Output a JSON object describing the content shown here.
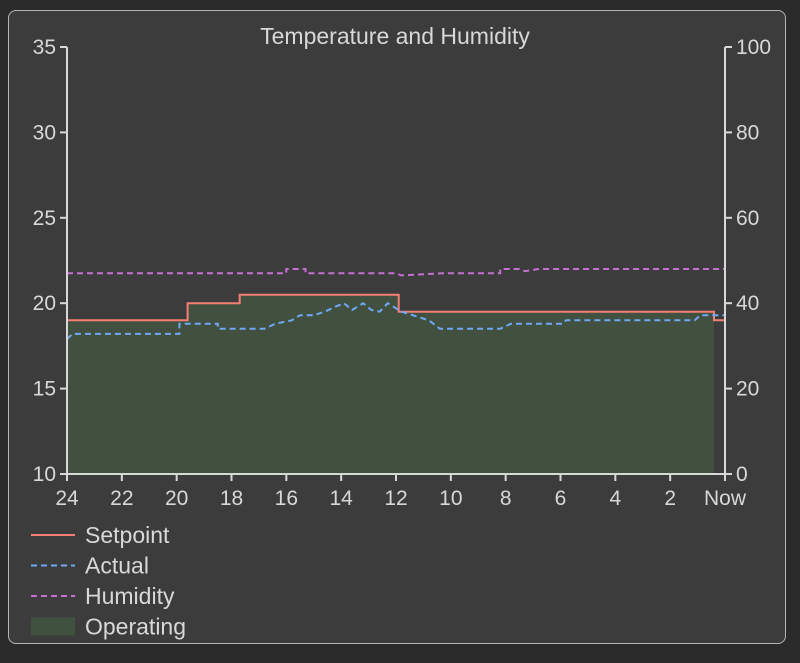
{
  "chart_data": {
    "type": "line",
    "title": "Temperature and Humidity",
    "x": {
      "range": [
        24,
        0
      ],
      "ticks": [
        24,
        22,
        20,
        18,
        16,
        14,
        12,
        10,
        8,
        6,
        4,
        2,
        0
      ],
      "tick_labels": [
        "24",
        "22",
        "20",
        "18",
        "16",
        "14",
        "12",
        "10",
        "8",
        "6",
        "4",
        "2",
        "Now"
      ]
    },
    "y_left": {
      "range": [
        10,
        35
      ],
      "ticks": [
        10,
        15,
        20,
        25,
        30,
        35
      ],
      "tick_labels": [
        "10",
        "15",
        "20",
        "25",
        "30",
        "35"
      ]
    },
    "y_right": {
      "range": [
        0,
        100
      ],
      "ticks": [
        0,
        20,
        40,
        60,
        80,
        100
      ],
      "tick_labels": [
        "0",
        "20",
        "40",
        "60",
        "80",
        "100"
      ]
    },
    "grid": false,
    "legend": {
      "placement": "bottom-left"
    },
    "series": [
      {
        "name": "Setpoint",
        "axis": "left",
        "style": "solid",
        "color": "#f47f75",
        "points": [
          [
            24,
            19.0
          ],
          [
            19.6,
            19.0
          ],
          [
            19.6,
            20.0
          ],
          [
            17.7,
            20.0
          ],
          [
            17.7,
            20.5
          ],
          [
            11.9,
            20.5
          ],
          [
            11.9,
            19.5
          ],
          [
            0.4,
            19.5
          ],
          [
            0.4,
            19.0
          ],
          [
            0,
            19.0
          ]
        ]
      },
      {
        "name": "Actual",
        "axis": "left",
        "style": "dashed",
        "color": "#6fa8f5",
        "points": [
          [
            24,
            17.9
          ],
          [
            23.8,
            18.2
          ],
          [
            19.9,
            18.2
          ],
          [
            19.9,
            18.8
          ],
          [
            18.5,
            18.8
          ],
          [
            18.5,
            18.5
          ],
          [
            16.8,
            18.5
          ],
          [
            16.4,
            18.8
          ],
          [
            15.8,
            19.0
          ],
          [
            15.5,
            19.3
          ],
          [
            15.0,
            19.3
          ],
          [
            14.6,
            19.5
          ],
          [
            14.2,
            19.8
          ],
          [
            13.9,
            20.0
          ],
          [
            13.6,
            19.6
          ],
          [
            13.2,
            20.0
          ],
          [
            12.9,
            19.6
          ],
          [
            12.6,
            19.5
          ],
          [
            12.3,
            20.0
          ],
          [
            11.8,
            19.5
          ],
          [
            10.8,
            19.0
          ],
          [
            10.4,
            18.5
          ],
          [
            8.2,
            18.5
          ],
          [
            7.8,
            18.8
          ],
          [
            5.9,
            18.8
          ],
          [
            5.8,
            19.0
          ],
          [
            1.1,
            19.0
          ],
          [
            0.9,
            19.3
          ],
          [
            0,
            19.3
          ]
        ]
      },
      {
        "name": "Humidity",
        "axis": "right",
        "style": "dashed",
        "color": "#c46fd1",
        "points": [
          [
            24,
            47
          ],
          [
            16.0,
            47
          ],
          [
            16.0,
            48
          ],
          [
            15.3,
            48
          ],
          [
            15.3,
            47
          ],
          [
            12.0,
            47
          ],
          [
            11.8,
            46.5
          ],
          [
            10.3,
            47
          ],
          [
            8.2,
            47
          ],
          [
            8.2,
            48
          ],
          [
            7.5,
            48
          ],
          [
            7.3,
            47.5
          ],
          [
            6.8,
            48
          ],
          [
            0,
            48
          ]
        ]
      },
      {
        "name": "Operating",
        "axis": "left",
        "style": "area",
        "color": "#41513f",
        "points": [
          [
            24,
            19.0
          ],
          [
            19.6,
            19.0
          ],
          [
            19.6,
            20.0
          ],
          [
            17.7,
            20.0
          ],
          [
            17.7,
            20.5
          ],
          [
            11.9,
            20.5
          ],
          [
            11.9,
            19.5
          ],
          [
            0.4,
            19.5
          ],
          [
            0.4,
            10
          ]
        ]
      }
    ]
  }
}
